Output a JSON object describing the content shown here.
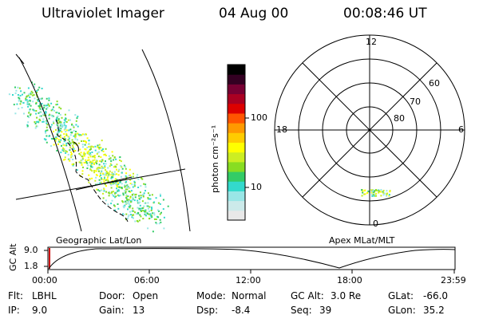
{
  "header": {
    "instrument": "Ultraviolet Imager",
    "date": "04 Aug 00",
    "time": "00:08:46 UT"
  },
  "colorbar": {
    "unit_label": "photon cm⁻²s⁻¹",
    "ticks": [
      "100",
      "10"
    ],
    "colors": [
      "#e8e8e8",
      "#cceaea",
      "#99e6e6",
      "#33d9cc",
      "#33cc66",
      "#88dd22",
      "#ccee22",
      "#ffff00",
      "#ffcc00",
      "#ff9900",
      "#ff5500",
      "#dd0000",
      "#aa0022",
      "#770033",
      "#330022",
      "#000000"
    ]
  },
  "left_panel": {
    "label": "Geographic Lat/Lon"
  },
  "right_panel": {
    "label": "Apex MLat/MLT",
    "mlt_labels": [
      "12",
      "18",
      "6",
      "0"
    ],
    "mlat_labels": [
      "60",
      "70",
      "80"
    ]
  },
  "altitude_plot": {
    "ylabel": "GC Alt",
    "yticks": [
      "9.0",
      "1.8"
    ],
    "xticks": [
      "00:00",
      "06:00",
      "12:00",
      "18:00",
      "23:59"
    ]
  },
  "info": {
    "flt_label": "Flt:",
    "flt_value": "LBHL",
    "ip_label": "IP:",
    "ip_value": "9.0",
    "door_label": "Door:",
    "door_value": "Open",
    "gain_label": "Gain:",
    "gain_value": "13",
    "mode_label": "Mode:",
    "mode_value": "Normal",
    "dsp_label": "Dsp:",
    "dsp_value": "-8.4",
    "gcalt_label": "GC Alt:",
    "gcalt_value": "3.0 Re",
    "seq_label": "Seq:",
    "seq_value": "39",
    "glat_label": "GLat:",
    "glat_value": "-66.0",
    "glon_label": "GLon:",
    "glon_value": "35.2"
  }
}
